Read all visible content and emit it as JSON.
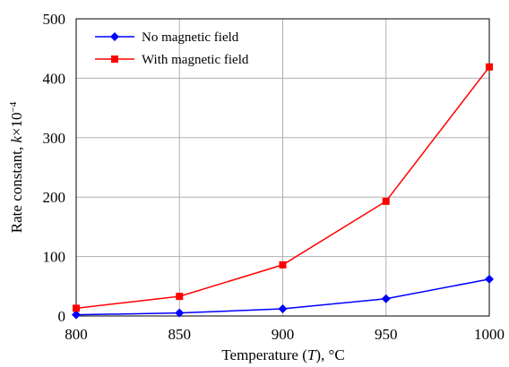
{
  "chart_data": {
    "type": "line",
    "x": [
      800,
      850,
      900,
      950,
      1000
    ],
    "xlim": [
      800,
      1000
    ],
    "ylim": [
      0,
      500
    ],
    "x_ticks": [
      "800",
      "850",
      "900",
      "950",
      "1000"
    ],
    "y_ticks": [
      "0",
      "100",
      "200",
      "300",
      "400",
      "500"
    ],
    "xlabel": {
      "prefix": "Temperature (",
      "var": "T",
      "suffix": "), °C"
    },
    "ylabel": {
      "prefix": "Rate constant, ",
      "var": "k",
      "mid": "×10",
      "sup": "−4"
    },
    "grid": true,
    "legend_position": "top-left",
    "series": [
      {
        "name": "No magnetic field",
        "values": [
          2,
          5,
          12,
          29,
          62
        ],
        "color": "#0000ff",
        "marker": "diamond"
      },
      {
        "name": "With magnetic field",
        "values": [
          13,
          33,
          86,
          193,
          419
        ],
        "color": "#ff0000",
        "marker": "square"
      }
    ]
  }
}
